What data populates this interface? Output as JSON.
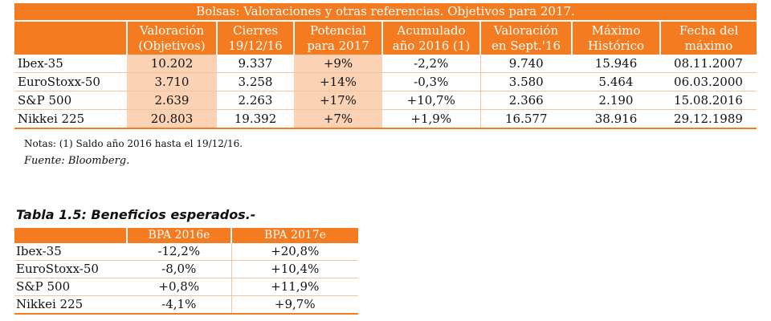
{
  "table1": {
    "title": "Bolsas: Valoraciones y otras referencias. Objetivos para 2017.",
    "headers": [
      {
        "l1": "",
        "l2": ""
      },
      {
        "l1": "Valoración",
        "l2": "(Objetivos)"
      },
      {
        "l1": "Cierres",
        "l2": "19/12/16"
      },
      {
        "l1": "Potencial",
        "l2": "para 2017"
      },
      {
        "l1": "Acumulado",
        "l2": "año 2016 (1)"
      },
      {
        "l1": "Valoración",
        "l2": "en Sept.'16"
      },
      {
        "l1": "Máximo",
        "l2": "Histórico"
      },
      {
        "l1": "Fecha del",
        "l2": "máximo"
      }
    ],
    "rows": [
      [
        "Ibex-35",
        "10.202",
        "9.337",
        "+9%",
        "-2,2%",
        "9.740",
        "15.946",
        "08.11.2007"
      ],
      [
        "EuroStoxx-50",
        "3.710",
        "3.258",
        "+14%",
        "-0,3%",
        "3.580",
        "5.464",
        "06.03.2000"
      ],
      [
        "S&P 500",
        "2.639",
        "2.263",
        "+17%",
        "+10,7%",
        "2.366",
        "2.190",
        "15.08.2016"
      ],
      [
        "Nikkei 225",
        "20.803",
        "19.392",
        "+7%",
        "+1,9%",
        "16.577",
        "38.916",
        "29.12.1989"
      ]
    ],
    "notes": "Notas: (1) Saldo año 2016 hasta el 19/12/16.",
    "source": "Fuente: Bloomberg."
  },
  "table2": {
    "title": "Tabla 1.5: Beneficios esperados.-",
    "headers": [
      "",
      "BPA 2016e",
      "BPA 2017e"
    ],
    "rows": [
      [
        "Ibex-35",
        "-12,2%",
        "+20,8%"
      ],
      [
        "EuroStoxx-50",
        "-8,0%",
        "+10,4%"
      ],
      [
        "S&P 500",
        "+0,8%",
        "+11,9%"
      ],
      [
        "Nikkei 225",
        "-4,1%",
        "+9,7%"
      ]
    ]
  },
  "colors": {
    "accent": "#f47b20",
    "highlight": "#fbd2b4",
    "rule": "#f2c49f"
  }
}
